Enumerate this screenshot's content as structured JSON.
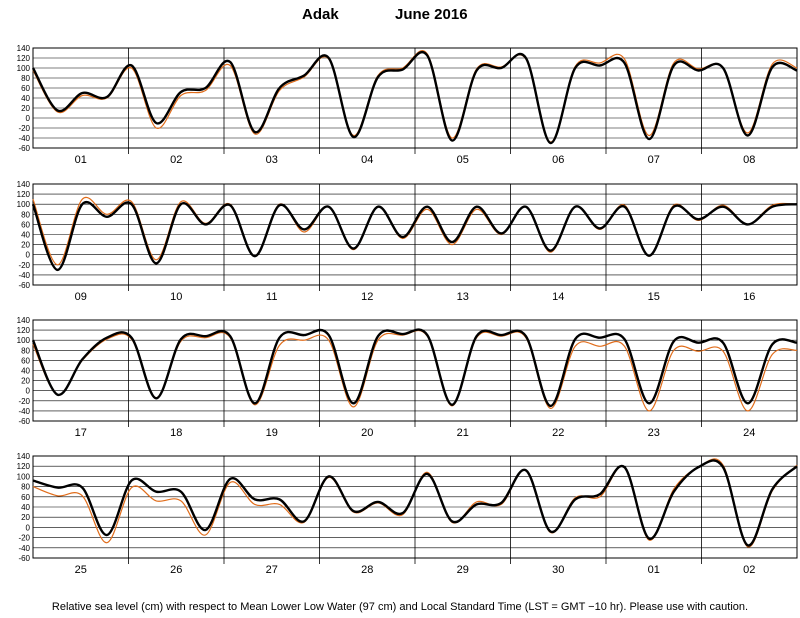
{
  "title": {
    "station": "Adak",
    "month": "June  2016"
  },
  "footnote": "Relative sea level (cm) with respect to Mean Lower Low Water (97 cm) and Local Standard Time (LST = GMT −10 hr). Please use with caution.",
  "colors": {
    "observed": "#000000",
    "predicted": "#e06c1a",
    "grid": "#000000"
  },
  "chart_data": {
    "type": "line",
    "ylim": [
      -60,
      140
    ],
    "yticks": [
      140,
      120,
      100,
      80,
      60,
      40,
      20,
      0,
      -20,
      -40,
      -60
    ],
    "grid": true,
    "panels": [
      {
        "days": [
          "01",
          "02",
          "03",
          "04",
          "05",
          "06",
          "07",
          "08"
        ],
        "series": [
          {
            "color": "#000000",
            "values": [
              100,
              15,
              50,
              42,
              105,
              -10,
              52,
              60,
              112,
              -28,
              60,
              85,
              120,
              -38,
              82,
              97,
              125,
              -45,
              95,
              100,
              120,
              -50,
              100,
              105,
              110,
              -42,
              105,
              95,
              100,
              -35,
              102,
              95
            ]
          },
          {
            "color": "#e06c1a",
            "values": [
              95,
              12,
              45,
              40,
              100,
              -20,
              45,
              55,
              105,
              -32,
              55,
              82,
              118,
              -35,
              85,
              100,
              128,
              -40,
              98,
              102,
              118,
              -48,
              103,
              110,
              118,
              -35,
              110,
              98,
              100,
              -30,
              108,
              100
            ]
          }
        ]
      },
      {
        "days": [
          "09",
          "10",
          "11",
          "12",
          "13",
          "14",
          "15",
          "16"
        ],
        "series": [
          {
            "color": "#000000",
            "values": [
              100,
              -30,
              100,
              75,
              100,
              -17,
              100,
              60,
              98,
              -3,
              98,
              50,
              95,
              12,
              95,
              35,
              95,
              25,
              95,
              42,
              95,
              8,
              95,
              52,
              95,
              -2,
              95,
              70,
              95,
              60,
              95,
              100
            ]
          },
          {
            "color": "#e06c1a",
            "values": [
              110,
              -20,
              110,
              80,
              105,
              -10,
              105,
              62,
              100,
              -2,
              100,
              45,
              95,
              10,
              95,
              32,
              90,
              20,
              90,
              40,
              95,
              5,
              95,
              50,
              98,
              -3,
              98,
              68,
              98,
              60,
              98,
              100
            ]
          }
        ]
      },
      {
        "days": [
          "17",
          "18",
          "19",
          "20",
          "21",
          "22",
          "23",
          "24"
        ],
        "series": [
          {
            "color": "#000000",
            "values": [
              100,
              -8,
              62,
              105,
              105,
              -15,
              102,
              108,
              108,
              -25,
              105,
              110,
              110,
              -25,
              108,
              112,
              110,
              -28,
              108,
              110,
              108,
              -30,
              102,
              105,
              102,
              -25,
              98,
              95,
              95,
              -25,
              92,
              95
            ]
          },
          {
            "color": "#e06c1a",
            "values": [
              92,
              -8,
              60,
              102,
              102,
              -14,
              98,
              105,
              105,
              -28,
              90,
              100,
              100,
              -32,
              100,
              110,
              108,
              -30,
              105,
              108,
              105,
              -35,
              88,
              88,
              88,
              -40,
              80,
              78,
              78,
              -40,
              72,
              80
            ]
          }
        ]
      },
      {
        "days": [
          "25",
          "26",
          "27",
          "28",
          "29",
          "30",
          "01",
          "02"
        ],
        "series": [
          {
            "color": "#000000",
            "values": [
              92,
              78,
              78,
              -15,
              92,
              70,
              70,
              -5,
              95,
              55,
              55,
              12,
              100,
              32,
              50,
              28,
              105,
              12,
              45,
              48,
              112,
              -8,
              55,
              65,
              118,
              -22,
              70,
              118,
              118,
              -35,
              75,
              120
            ]
          },
          {
            "color": "#e06c1a",
            "values": [
              80,
              62,
              62,
              -30,
              78,
              52,
              52,
              -15,
              88,
              45,
              45,
              10,
              98,
              30,
              48,
              25,
              108,
              10,
              50,
              45,
              112,
              -10,
              58,
              60,
              118,
              -25,
              75,
              118,
              122,
              -38,
              72,
              122
            ]
          }
        ]
      }
    ]
  }
}
